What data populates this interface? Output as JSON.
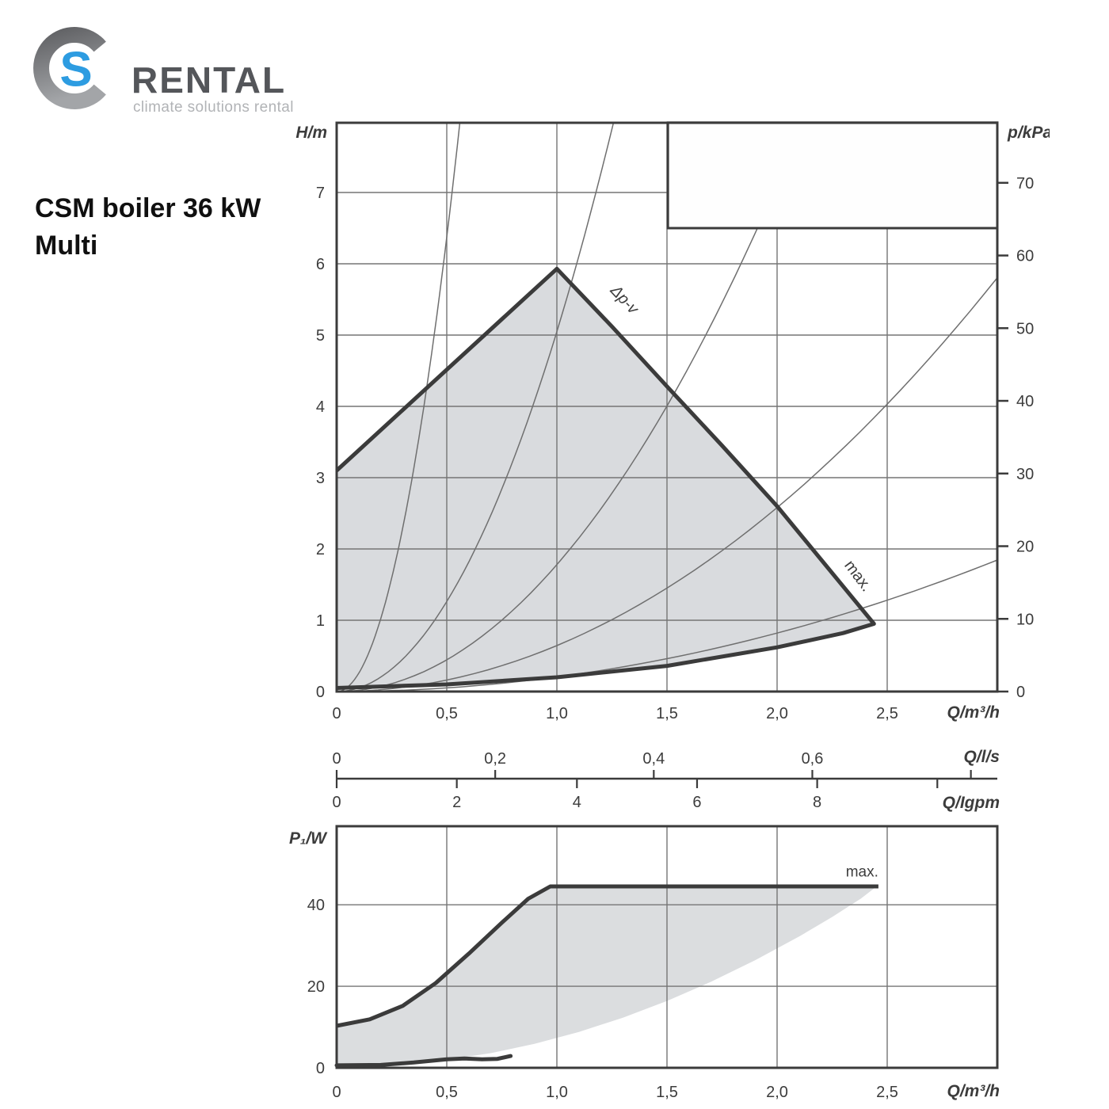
{
  "theme": {
    "curve_color": "#3b3b3b",
    "grid_color": "#757575",
    "thin_color": "#6f6f6f",
    "text_color": "#3c3c3c",
    "fill_top": "#d9dbde",
    "fill_bottom": "#dbdddf",
    "accent_blue": "#2d9ce1",
    "brand_gray": "#54565a",
    "tagline_gray": "#b1b3b6"
  },
  "logo": {
    "s_letter": "S",
    "name": "RENTAL",
    "tagline": "climate solutions rental"
  },
  "title": {
    "line1": "CSM boiler 36 kW",
    "line2": "Multi"
  },
  "chart_data": [
    {
      "id": "head-flow-chart",
      "type": "area",
      "title": "",
      "xlabel": "Q/m³/h",
      "ylabel_left": "H/m",
      "ylabel_right": "p/kPa",
      "xlim": [
        0,
        3.0
      ],
      "ylim": [
        0,
        7.98
      ],
      "p_axis_kpa_per_m": 9.81,
      "grid": {
        "x_step": 0.5,
        "y_step": 1,
        "grid_on": true
      },
      "x_ticks": [
        {
          "v": 0,
          "label": "0"
        },
        {
          "v": 0.5,
          "label": "0,5"
        },
        {
          "v": 1,
          "label": "1,0"
        },
        {
          "v": 1.5,
          "label": "1,5"
        },
        {
          "v": 2,
          "label": "2,0"
        },
        {
          "v": 2.5,
          "label": "2,5"
        }
      ],
      "y_ticks_h": [
        {
          "v": 0,
          "label": "0"
        },
        {
          "v": 1,
          "label": "1"
        },
        {
          "v": 2,
          "label": "2"
        },
        {
          "v": 3,
          "label": "3"
        },
        {
          "v": 4,
          "label": "4"
        },
        {
          "v": 5,
          "label": "5"
        },
        {
          "v": 6,
          "label": "6"
        },
        {
          "v": 7,
          "label": "7"
        }
      ],
      "p_ticks": [
        {
          "v": 0,
          "label": "0"
        },
        {
          "v": 10,
          "label": "10"
        },
        {
          "v": 20,
          "label": "20"
        },
        {
          "v": 30,
          "label": "30"
        },
        {
          "v": 40,
          "label": "40"
        },
        {
          "v": 50,
          "label": "50"
        },
        {
          "v": 60,
          "label": "60"
        },
        {
          "v": 70,
          "label": "70"
        }
      ],
      "envelope_upper": [
        [
          0,
          3.1
        ],
        [
          1.0,
          5.93
        ]
      ],
      "envelope_max": [
        [
          1.0,
          5.93
        ],
        [
          1.25,
          5.12
        ],
        [
          1.5,
          4.28
        ],
        [
          1.75,
          3.45
        ],
        [
          2.0,
          2.6
        ],
        [
          2.2,
          1.85
        ],
        [
          2.44,
          0.95
        ]
      ],
      "envelope_min": [
        [
          0,
          0.05
        ],
        [
          0.5,
          0.1
        ],
        [
          1.0,
          0.2
        ],
        [
          1.5,
          0.36
        ],
        [
          2.0,
          0.62
        ],
        [
          2.3,
          0.82
        ],
        [
          2.44,
          0.95
        ]
      ],
      "system_curves_k": [
        25.5,
        5.05,
        1.78,
        0.645,
        0.205
      ],
      "blank_box": {
        "q1": 1.504,
        "q2": 3.0,
        "h1": 6.5,
        "h2": 7.98
      },
      "annotations": [
        {
          "text": "Δp-v",
          "q": 1.29,
          "h": 5.45,
          "angle": 47,
          "italic": true
        },
        {
          "text": "max.",
          "q": 2.35,
          "h": 1.58,
          "angle": 53,
          "italic": false
        }
      ]
    },
    {
      "id": "flow-unit-axes",
      "type": "axis",
      "scales": [
        {
          "label": "Q/l/s",
          "side": "above",
          "unit_to_m3h": 3.6,
          "ticks": [
            {
              "v": 0,
              "label": "0"
            },
            {
              "v": 0.2,
              "label": "0,2"
            },
            {
              "v": 0.4,
              "label": "0,4"
            },
            {
              "v": 0.6,
              "label": "0,6"
            },
            {
              "v": 0.8,
              "label": ""
            }
          ]
        },
        {
          "label": "Q/Igpm",
          "side": "below",
          "unit_to_m3h": 0.27276,
          "ticks": [
            {
              "v": 0,
              "label": "0"
            },
            {
              "v": 2,
              "label": "2"
            },
            {
              "v": 4,
              "label": "4"
            },
            {
              "v": 6,
              "label": "6"
            },
            {
              "v": 8,
              "label": "8"
            },
            {
              "v": 10,
              "label": ""
            }
          ]
        }
      ]
    },
    {
      "id": "power-chart",
      "type": "area",
      "xlabel": "Q/m³/h",
      "ylabel_left": "P₁/W",
      "xlim": [
        0,
        3.0
      ],
      "ylim": [
        0,
        59
      ],
      "grid": {
        "x_step": 0.5,
        "y_step": 20,
        "grid_on": true
      },
      "x_ticks": [
        {
          "v": 0,
          "label": "0"
        },
        {
          "v": 0.5,
          "label": "0,5"
        },
        {
          "v": 1,
          "label": "1,0"
        },
        {
          "v": 1.5,
          "label": "1,5"
        },
        {
          "v": 2,
          "label": "2,0"
        },
        {
          "v": 2.5,
          "label": "2,5"
        }
      ],
      "y_ticks": [
        {
          "v": 0,
          "label": "0"
        },
        {
          "v": 20,
          "label": "20"
        },
        {
          "v": 40,
          "label": "40"
        }
      ],
      "max_curve": [
        [
          0,
          10.3
        ],
        [
          0.15,
          11.9
        ],
        [
          0.3,
          15.2
        ],
        [
          0.45,
          20.8
        ],
        [
          0.6,
          28.0
        ],
        [
          0.75,
          35.6
        ],
        [
          0.87,
          41.5
        ],
        [
          0.97,
          44.5
        ],
        [
          2.46,
          44.5
        ]
      ],
      "min_curve": [
        [
          0,
          0.6
        ],
        [
          0.2,
          0.7
        ],
        [
          0.35,
          1.3
        ],
        [
          0.5,
          2.1
        ],
        [
          0.58,
          2.3
        ],
        [
          0.66,
          2.1
        ],
        [
          0.73,
          2.2
        ],
        [
          0.79,
          2.9
        ]
      ],
      "area_lower": [
        [
          0,
          0.6
        ],
        [
          0.3,
          1.1
        ],
        [
          0.5,
          2.0
        ],
        [
          0.7,
          3.6
        ],
        [
          0.9,
          5.9
        ],
        [
          1.1,
          8.8
        ],
        [
          1.3,
          12.3
        ],
        [
          1.5,
          16.4
        ],
        [
          1.7,
          21.1
        ],
        [
          1.9,
          26.4
        ],
        [
          2.1,
          32.2
        ],
        [
          2.25,
          37.0
        ],
        [
          2.38,
          41.5
        ],
        [
          2.44,
          44.0
        ]
      ],
      "annotations": [
        {
          "text": "max.",
          "q": 2.46,
          "p": 46.9,
          "anchor": "end"
        }
      ]
    }
  ]
}
